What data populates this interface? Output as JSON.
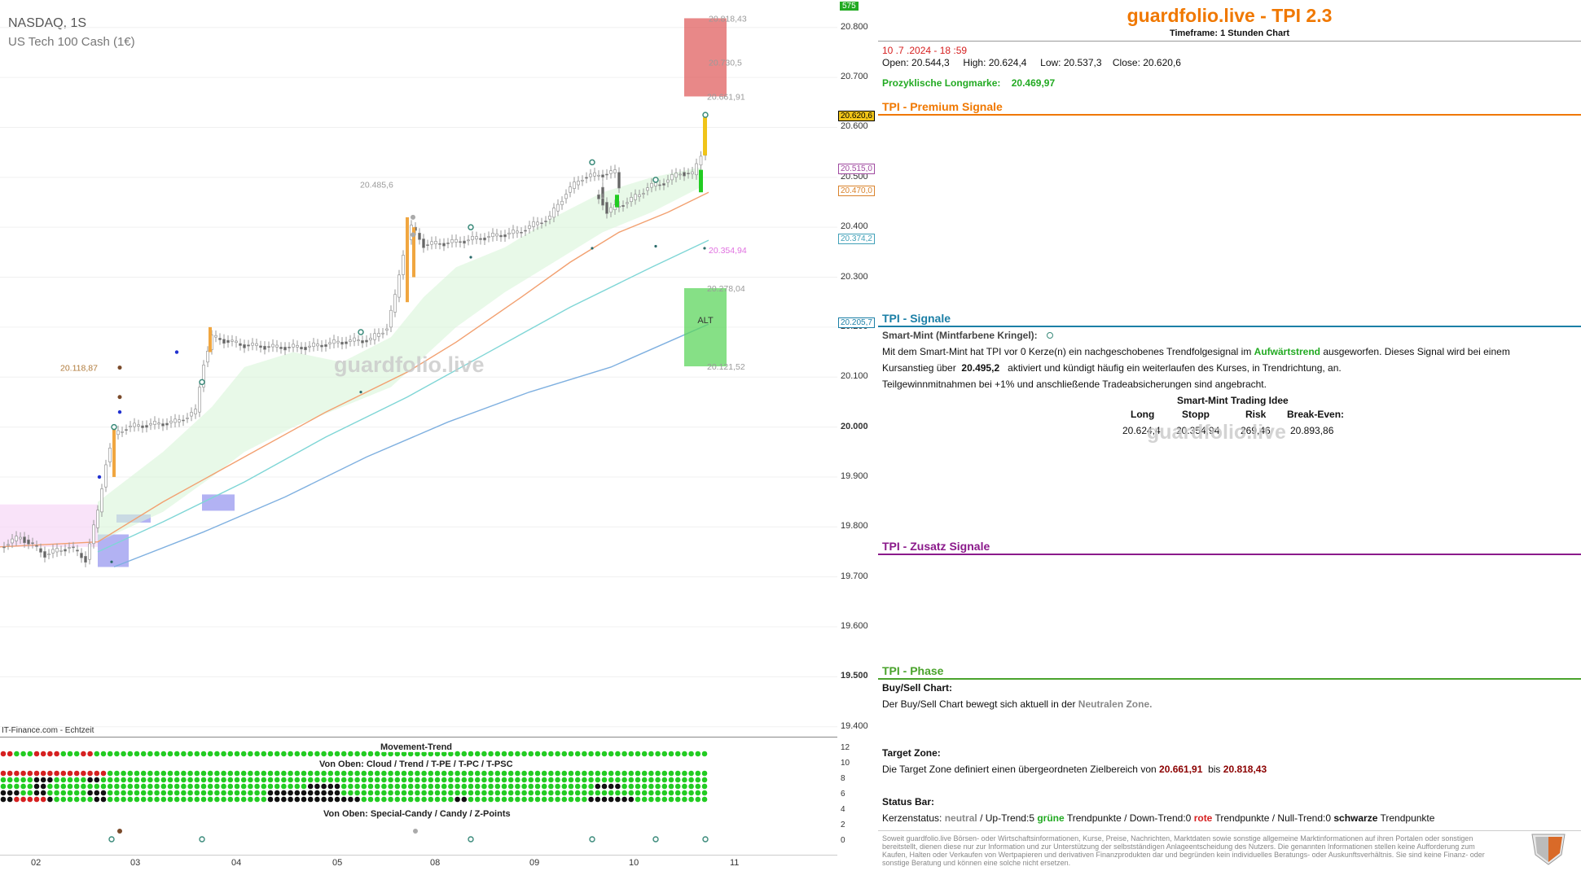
{
  "symbol": {
    "title": "NASDAQ, 1S",
    "subtitle": "US Tech 100 Cash (1€)"
  },
  "watermark": "guardfolio.live",
  "source_label": "IT-Finance.com - Echtzeit",
  "colors": {
    "accent": "#f07800",
    "premium": "#f07800",
    "signals": "#1b7fa6",
    "zusatz": "#8b1a8b",
    "phase": "#4aa32c",
    "bull": "#22cc22",
    "bear": "#d62020"
  },
  "chart_data": {
    "type": "candlestick",
    "x_axis_labels": [
      "02",
      "03",
      "04",
      "05",
      "08",
      "09",
      "10",
      "11"
    ],
    "y_axis_labels": [
      "20.800",
      "20.700",
      "20.600",
      "20.500",
      "20.400",
      "20.300",
      "20.200",
      "20.100",
      "20.000",
      "19.900",
      "19.800",
      "19.700",
      "19.600",
      "19.500",
      "19.400"
    ],
    "bold_y_labels": [
      "20.000",
      "19.500"
    ],
    "top_axis_badge": "575",
    "ylim": [
      19380,
      20855
    ],
    "price_tags": [
      {
        "label": "20.620,6",
        "value": 20620.6,
        "color": "#000",
        "bg": "#f0c419"
      },
      {
        "label": "20.515,0",
        "value": 20515.0,
        "color": "#a04aa0",
        "bg": "#fff"
      },
      {
        "label": "20.470,0",
        "value": 20470.0,
        "color": "#d9822b",
        "bg": "#fff"
      },
      {
        "label": "20.374,2",
        "value": 20374.2,
        "color": "#40a0b8",
        "bg": "#fff"
      },
      {
        "label": "20.205,7",
        "value": 20205.7,
        "color": "#1b7fa6",
        "bg": "#fff"
      }
    ],
    "level_labels": [
      {
        "label": "20.818,43",
        "value": 20818.43
      },
      {
        "label": "20.730,5",
        "value": 20730.5
      },
      {
        "label": "20.661,91",
        "value": 20661.91
      },
      {
        "label": "20.354,94",
        "value": 20354.94,
        "color": "#e070e0"
      },
      {
        "label": "20.278,04",
        "value": 20278.04
      },
      {
        "label": "20.121,52",
        "value": 20121.52
      },
      {
        "label": "20.485,6",
        "value": 20485.6
      },
      {
        "label": "20.118,87",
        "value": 20118.87,
        "color": "#b07a3a"
      }
    ],
    "zones": [
      {
        "name": "target-zone-upper",
        "from": 20661.91,
        "to": 20818.43,
        "color": "#e06060"
      },
      {
        "name": "alt-zone",
        "from": 20121.52,
        "to": 20278.04,
        "color": "#5ed65e",
        "label": "ALT"
      }
    ],
    "close": 20620.6
  },
  "indicator": {
    "movement_trend_title": "Movement-Trend",
    "cloud_title": "Von Oben: Cloud / Trend / T-PE / T-PC / T-PSC",
    "candy_title": "Von Oben: Special-Candy / Candy / Z-Points",
    "y_labels": [
      "12",
      "10",
      "8",
      "6",
      "4",
      "2",
      "0"
    ]
  },
  "info": {
    "title": "guardfolio.live - TPI 2.3",
    "timeframe": "Timeframe: 1 Stunden Chart",
    "datetime": "10 .7 .2024 - 18 :59",
    "ohlc_open": "Open: 20.544,3",
    "ohlc_high": "High: 20.624,4",
    "ohlc_low": "Low: 20.537,3",
    "ohlc_close": "Close: 20.620,6",
    "longmarke_label": "Prozyklische Longmarke:",
    "longmarke_value": "20.469,97",
    "premium_title": "TPI - Premium Signale",
    "signals_title": "TPI - Signale",
    "smart_mint_label": "Smart-Mint (Mintfarbene Kringel):",
    "sm_line1_a": "Mit dem Smart-Mint hat TPI vor 0  Kerze(n) ein nachgeschobenes Trendfolgesignal im",
    "sm_line1_b": "Aufwärtstrend",
    "sm_line1_c": "ausgeworfen. Dieses Signal wird bei einem",
    "sm_line2_a": "Kursanstieg über",
    "sm_line2_b": "20.495,2",
    "sm_line2_c": "aktiviert und kündigt häufig ein weiterlaufen des Kurses, in Trendrichtung, an.",
    "sm_line3": "Teilgewinnmitnahmen bei +1% und anschließende Tradeabsicherungen sind angebracht.",
    "trade_title": "Smart-Mint Trading Idee",
    "trade_headers": [
      "Long",
      "Stopp",
      "Risk",
      "Break-Even:"
    ],
    "trade_values": [
      "20.624,4",
      "20.354,94",
      "269,46",
      "20.893,86"
    ],
    "zusatz_title": "TPI - Zusatz Signale",
    "phase_title": "TPI - Phase",
    "buysell_label": "Buy/Sell Chart:",
    "buysell_text_a": "Der Buy/Sell Chart bewegt sich aktuell in der",
    "buysell_text_b": "Neutralen Zone.",
    "target_label": "Target Zone:",
    "target_text_a": "Die Target Zone definiert einen übergeordneten Zielbereich von",
    "target_from": "20.661,91",
    "target_bis": "bis",
    "target_to": "20.818,43",
    "status_label": "Status Bar:",
    "status_a": "Kerzenstatus:",
    "status_neutral": "neutral",
    "status_b": "/ Up-Trend:5",
    "status_gruene": "grüne",
    "status_c": "Trendpunkte  / Down-Trend:0",
    "status_rote": "rote",
    "status_d": "Trendpunkte / Null-Trend:0",
    "status_schwarze": "schwarze",
    "status_e": "Trendpunkte",
    "disclaimer": "Soweit guardfolio.live Börsen- oder Wirtschaftsinformationen, Kurse, Preise, Nachrichten, Marktdaten sowie sonstige allgemeine Marktinformationen auf ihren Portalen oder sonstigen bereitstellt, dienen diese nur zur Information und zur Unterstützung der selbstständigen Anlageentscheidung des Nutzers. Die genannten Informationen stellen keine Aufforderung zum Kaufen, Halten oder Verkaufen von Wertpapieren und derivativen Finanzprodukten dar und begründen kein individuelles Beratungs- oder Auskunftsverhältnis. Sie sind keine Finanz- oder sonstige Beratung und können eine solche nicht ersetzen."
  }
}
